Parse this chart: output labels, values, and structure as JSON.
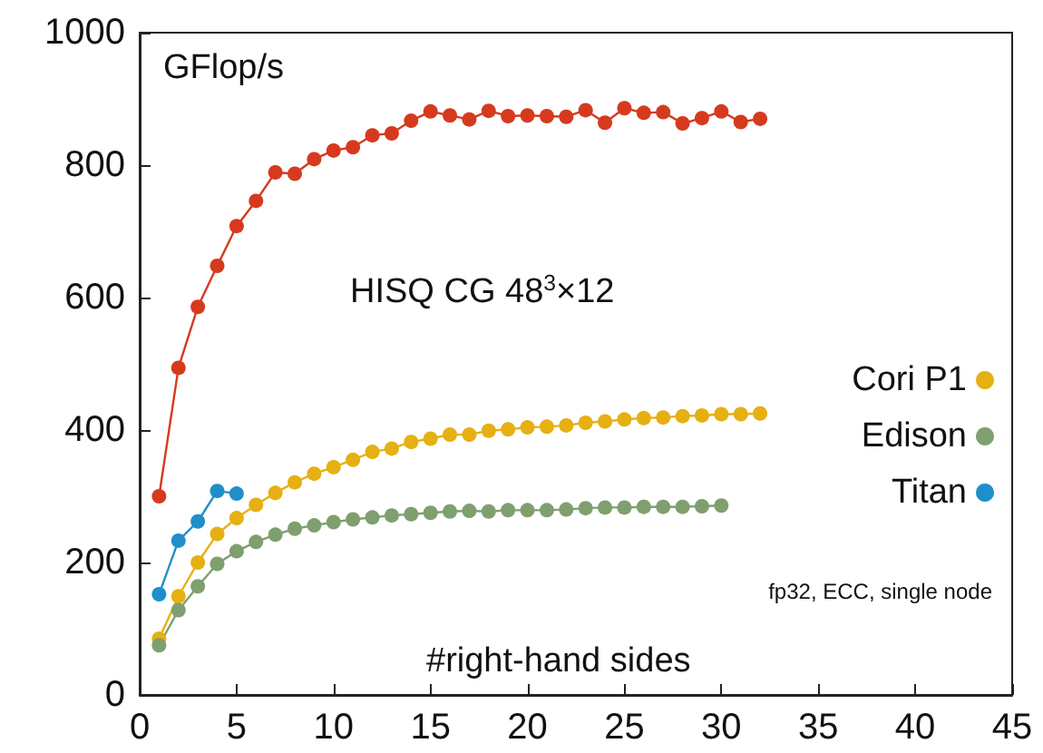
{
  "chart_data": {
    "type": "line",
    "xlabel": "#right-hand sides",
    "ylabel": "GFlop/s",
    "annotations": [
      "HISQ CG 48$^{3}$×12",
      "fp32, ECC, single node"
    ],
    "x": [
      1,
      2,
      3,
      4,
      5,
      6,
      7,
      8,
      9,
      10,
      11,
      12,
      13,
      14,
      15,
      16,
      17,
      18,
      19,
      20,
      21,
      22,
      23,
      24,
      25,
      26,
      27,
      28,
      29,
      30,
      31,
      32
    ],
    "series": [
      {
        "color": "#d63a1e",
        "values": [
          300,
          494,
          586,
          648,
          708,
          746,
          789,
          787,
          809,
          822,
          827,
          845,
          848,
          867,
          881,
          875,
          869,
          882,
          874,
          875,
          874,
          873,
          883,
          864,
          886,
          879,
          880,
          863,
          871,
          881,
          865,
          870
        ]
      },
      {
        "name": "Cori P1",
        "color": "#e6b012",
        "values": [
          85,
          149,
          200,
          243,
          267,
          287,
          305,
          321,
          334,
          344,
          355,
          367,
          372,
          382,
          387,
          393,
          393,
          399,
          401,
          404,
          405,
          407,
          411,
          413,
          416,
          418,
          419,
          421,
          422,
          424,
          424,
          425
        ]
      },
      {
        "name": "Edison",
        "color": "#7f9f6f",
        "x": [
          1,
          2,
          3,
          4,
          5,
          6,
          7,
          8,
          9,
          10,
          11,
          12,
          13,
          14,
          15,
          16,
          17,
          18,
          19,
          20,
          21,
          22,
          23,
          24,
          25,
          26,
          27,
          28,
          29,
          30
        ],
        "values": [
          75,
          128,
          164,
          198,
          217,
          231,
          242,
          251,
          256,
          261,
          265,
          268,
          271,
          273,
          275,
          277,
          278,
          277,
          279,
          279,
          279,
          280,
          282,
          283,
          283,
          284,
          284,
          284,
          285,
          286
        ]
      },
      {
        "name": "Titan",
        "color": "#1f8fc9",
        "x": [
          1,
          2,
          3,
          4,
          5
        ],
        "values": [
          152,
          233,
          262,
          308,
          304
        ]
      }
    ],
    "xlim": [
      0,
      45
    ],
    "xticks": [
      0,
      5,
      10,
      15,
      20,
      25,
      30,
      35,
      40,
      45
    ],
    "ylim": [
      0,
      1000
    ],
    "yticks": [
      0,
      200,
      400,
      600,
      800,
      1000
    ],
    "grid": false,
    "legend": "right",
    "marker": "circle",
    "line_style": "solid"
  }
}
